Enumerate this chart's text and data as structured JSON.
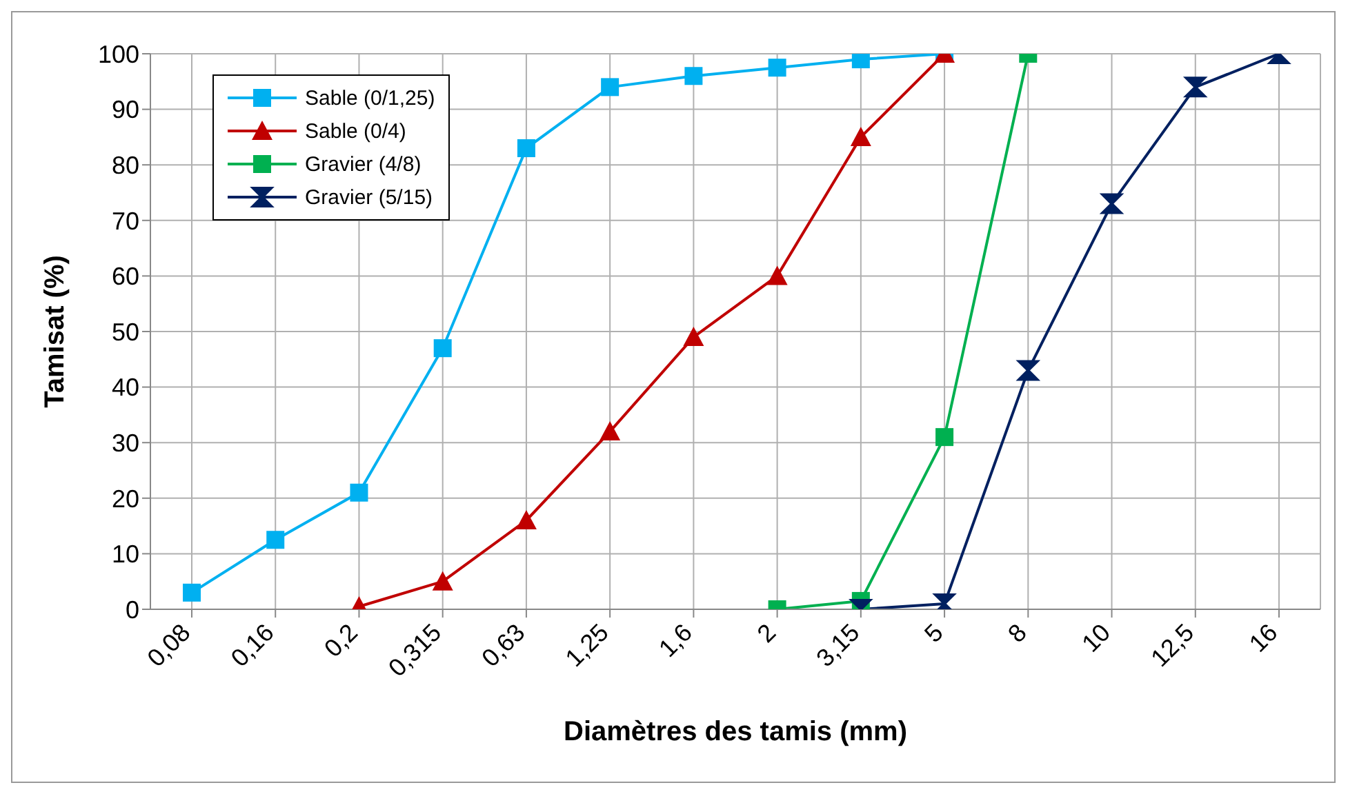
{
  "chart_data": {
    "type": "line",
    "xlabel": "Diamètres des tamis (mm)",
    "ylabel": "Tamisat (%)",
    "categories": [
      "0,08",
      "0,16",
      "0,2",
      "0,315",
      "0,63",
      "1,25",
      "1,6",
      "2",
      "3,15",
      "5",
      "8",
      "10",
      "12,5",
      "16"
    ],
    "series": [
      {
        "name": "Sable (0/1,25)",
        "color": "#00b0f0",
        "marker": "square",
        "values": [
          3,
          12.5,
          21,
          47,
          83,
          94,
          96,
          97.5,
          99,
          100,
          null,
          null,
          null,
          null
        ]
      },
      {
        "name": "Sable (0/4)",
        "color": "#c00000",
        "marker": "triangle",
        "values": [
          null,
          null,
          0.5,
          5,
          16,
          32,
          49,
          60,
          85,
          100,
          null,
          null,
          null,
          null
        ]
      },
      {
        "name": "Gravier (4/8)",
        "color": "#00b050",
        "marker": "square",
        "values": [
          null,
          null,
          null,
          null,
          null,
          null,
          null,
          0,
          1.5,
          31,
          100,
          null,
          null,
          null
        ]
      },
      {
        "name": "Gravier (5/15)",
        "color": "#002060",
        "marker": "diamond",
        "values": [
          null,
          null,
          null,
          null,
          null,
          null,
          null,
          null,
          0,
          1,
          43,
          73,
          94,
          100
        ]
      }
    ],
    "ylim": [
      0,
      100
    ],
    "yticks": [
      0,
      10,
      20,
      30,
      40,
      50,
      60,
      70,
      80,
      90,
      100
    ],
    "grid": true,
    "legend": "top left"
  }
}
